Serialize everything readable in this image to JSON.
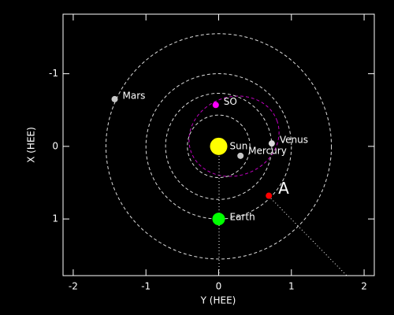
{
  "chart_data": {
    "type": "scatter",
    "xlabel": "Y (HEE)",
    "ylabel": "X (HEE)",
    "xlim": [
      -2.14,
      2.14
    ],
    "ylim": [
      1.78,
      -1.82
    ],
    "xticks": [
      -2,
      -1,
      0,
      1,
      2
    ],
    "yticks": [
      -1,
      0,
      1
    ],
    "points": [
      {
        "name": "Mars",
        "color": "#c8c8c8",
        "x": -1.43,
        "y": -0.65
      },
      {
        "name": "SO",
        "color": "#ff00ff",
        "x": -0.04,
        "y": -0.57
      },
      {
        "name": "Sun",
        "color": "#ffff00",
        "x": 0,
        "y": 0
      },
      {
        "name": "Venus",
        "color": "#d8d8d8",
        "x": 0.73,
        "y": -0.04
      },
      {
        "name": "Mercury",
        "color": "#c8c8c8",
        "x": 0.3,
        "y": 0.13
      },
      {
        "name": "Earth",
        "color": "#00ff00",
        "x": 0,
        "y": 1.0
      },
      {
        "name": "A",
        "color": "#ff0000",
        "x": 0.69,
        "y": 0.68
      }
    ]
  }
}
